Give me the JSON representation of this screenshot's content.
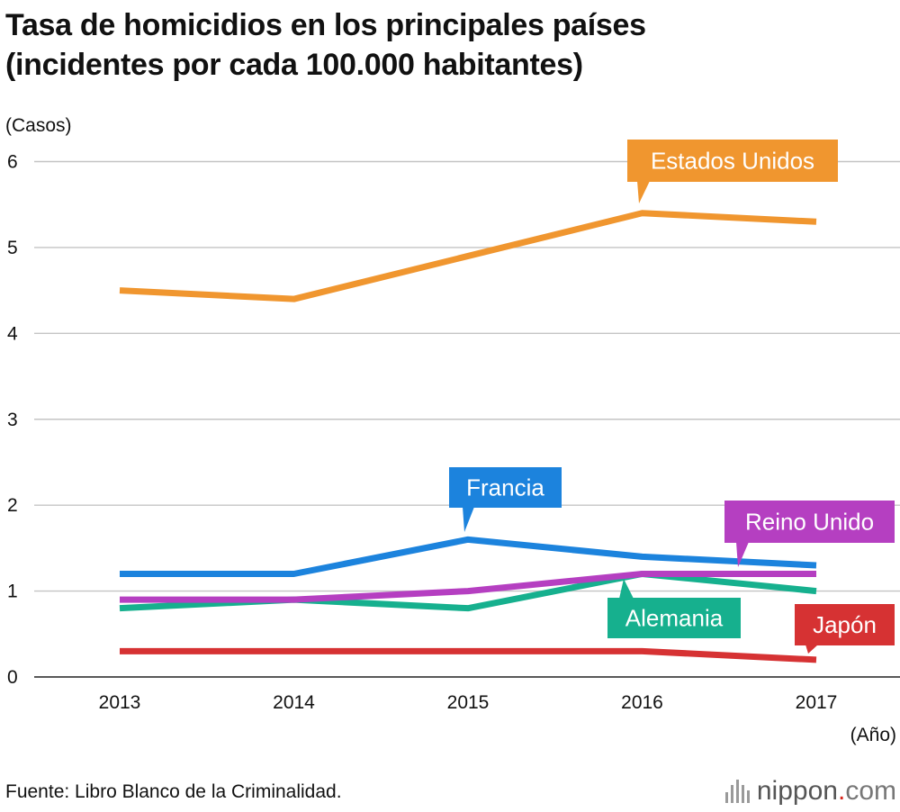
{
  "title": {
    "line1": "Tasa de homicidios en los principales países",
    "line2": "(incidentes por cada 100.000 habitantes)"
  },
  "source": "Fuente: Libro Blanco de la Criminalidad.",
  "logo": {
    "name": "nippon",
    "dot": ".",
    "tld": "com"
  },
  "chart_data": {
    "type": "line",
    "ylabel": "(Casos)",
    "xlabel": "(Año)",
    "categories": [
      "2013",
      "2014",
      "2015",
      "2016",
      "2017"
    ],
    "ylim": [
      0,
      6
    ],
    "yticks": [
      "0",
      "1",
      "2",
      "3",
      "4",
      "5",
      "6"
    ],
    "grid": true,
    "series": [
      {
        "name": "Estados Unidos",
        "color": "#f0962f",
        "values": [
          4.5,
          4.4,
          4.9,
          5.4,
          5.3
        ]
      },
      {
        "name": "Francia",
        "color": "#1c83dd",
        "values": [
          1.2,
          1.2,
          1.6,
          1.4,
          1.3
        ]
      },
      {
        "name": "Reino Unido",
        "color": "#b53fc1",
        "values": [
          0.9,
          0.9,
          1.0,
          1.2,
          1.2
        ]
      },
      {
        "name": "Alemania",
        "color": "#16b08e",
        "values": [
          0.8,
          0.9,
          0.8,
          1.2,
          1.0
        ]
      },
      {
        "name": "Japón",
        "color": "#d63233",
        "values": [
          0.3,
          0.3,
          0.3,
          0.3,
          0.2
        ]
      }
    ]
  }
}
